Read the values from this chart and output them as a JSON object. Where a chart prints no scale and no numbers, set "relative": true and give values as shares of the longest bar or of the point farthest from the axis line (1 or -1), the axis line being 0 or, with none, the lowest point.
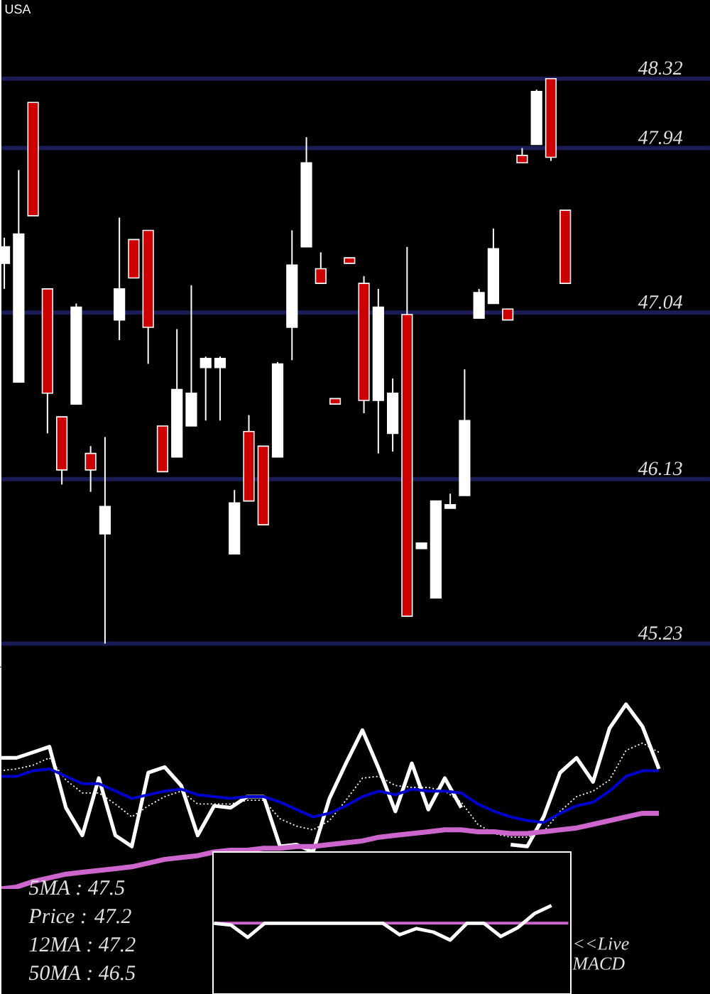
{
  "chart_data": [
    {
      "type": "candlestick",
      "title": "USA",
      "categories": [
        null,
        null,
        null,
        null,
        null,
        null,
        null,
        null,
        null,
        null,
        null,
        null,
        null,
        null,
        null,
        null,
        null,
        null,
        null,
        null,
        null,
        null,
        null,
        null,
        null,
        null,
        null,
        null,
        null,
        null,
        null,
        null,
        null,
        null,
        null,
        null,
        null,
        null,
        null,
        null
      ],
      "ohlc": [
        [
          47.31,
          47.45,
          47.17,
          47.4
        ],
        [
          46.66,
          47.82,
          46.66,
          47.47
        ],
        [
          48.19,
          48.19,
          47.57,
          47.57
        ],
        [
          47.17,
          47.17,
          46.38,
          46.6
        ],
        [
          46.47,
          46.47,
          46.1,
          46.18
        ],
        [
          46.54,
          47.09,
          46.54,
          47.07
        ],
        [
          46.27,
          46.31,
          46.06,
          46.18
        ],
        [
          45.83,
          46.36,
          45.23,
          45.98
        ],
        [
          47.0,
          47.56,
          46.89,
          47.17
        ],
        [
          47.44,
          47.44,
          47.23,
          47.23
        ],
        [
          47.49,
          47.49,
          46.76,
          46.96
        ],
        [
          46.42,
          46.42,
          46.17,
          46.17
        ],
        [
          46.25,
          46.95,
          46.25,
          46.62
        ],
        [
          46.42,
          47.19,
          46.42,
          46.6
        ],
        [
          46.74,
          46.8,
          46.45,
          46.79
        ],
        [
          46.74,
          46.8,
          46.45,
          46.79
        ],
        [
          45.72,
          46.07,
          45.72,
          46.0
        ],
        [
          46.39,
          46.48,
          46.01,
          46.01
        ],
        [
          46.31,
          46.31,
          45.88,
          45.88
        ],
        [
          46.25,
          46.77,
          46.25,
          46.76
        ],
        [
          46.96,
          47.49,
          46.78,
          47.3
        ],
        [
          47.4,
          48.0,
          47.4,
          47.86
        ],
        [
          47.28,
          47.37,
          47.2,
          47.2
        ],
        [
          46.57,
          46.57,
          46.54,
          46.54
        ],
        [
          47.34,
          47.34,
          47.31,
          47.31
        ],
        [
          47.2,
          47.24,
          46.49,
          46.56
        ],
        [
          46.56,
          47.17,
          46.27,
          47.07
        ],
        [
          46.38,
          46.68,
          46.28,
          46.6
        ],
        [
          47.03,
          47.4,
          45.38,
          45.38
        ],
        [
          45.75,
          45.78,
          45.75,
          45.78
        ],
        [
          45.48,
          46.01,
          45.48,
          46.01
        ],
        [
          45.97,
          46.05,
          45.97,
          45.99
        ],
        [
          46.04,
          46.73,
          46.04,
          46.45
        ],
        [
          47.01,
          47.17,
          47.01,
          47.15
        ],
        [
          47.09,
          47.5,
          47.09,
          47.39
        ],
        [
          47.06,
          47.06,
          47.0,
          47.0
        ],
        [
          47.9,
          47.94,
          47.86,
          47.86
        ],
        [
          47.96,
          48.26,
          47.96,
          48.25
        ],
        [
          48.32,
          48.32,
          47.87,
          47.89
        ],
        [
          47.6,
          47.6,
          47.2,
          47.2
        ]
      ],
      "colors": [
        "#ffffff",
        "#ffffff",
        "#cc0000",
        "#cc0000",
        "#cc0000",
        "#ffffff",
        "#cc0000",
        "#ffffff",
        "#ffffff",
        "#cc0000",
        "#cc0000",
        "#cc0000",
        "#ffffff",
        "#ffffff",
        "#ffffff",
        "#ffffff",
        "#ffffff",
        "#cc0000",
        "#cc0000",
        "#ffffff",
        "#ffffff",
        "#ffffff",
        "#cc0000",
        "#cc0000",
        "#cc0000",
        "#cc0000",
        "#ffffff",
        "#ffffff",
        "#cc0000",
        "#ffffff",
        "#ffffff",
        "#ffffff",
        "#ffffff",
        "#ffffff",
        "#ffffff",
        "#cc0000",
        "#cc0000",
        "#ffffff",
        "#cc0000",
        "#cc0000"
      ],
      "ylim": [
        45.1,
        48.75
      ],
      "yticks": [
        45.23,
        46.13,
        47.04,
        47.94,
        48.32
      ],
      "grid": "y",
      "tick_labels": "y"
    },
    {
      "type": "line",
      "relative": true,
      "tick_labels": false,
      "categories": [
        null,
        null,
        null,
        null,
        null,
        null,
        null,
        null,
        null,
        null,
        null,
        null,
        null,
        null,
        null,
        null,
        null,
        null,
        null,
        null,
        null,
        null,
        null,
        null,
        null,
        null,
        null,
        null,
        null,
        null,
        null,
        null,
        null,
        null,
        null,
        null,
        null,
        null,
        null,
        null,
        null
      ],
      "series": [
        {
          "color": "#ffffff",
          "values": [
            0.71,
            0.71,
            0.74,
            0.77,
            0.44,
            0.29,
            0.6,
            0.29,
            0.23,
            0.63,
            0.66,
            0.56,
            0.29,
            0.45,
            0.44,
            0.5,
            0.5,
            0.23,
            0.24,
            0.2,
            0.49,
            0.68,
            0.86,
            0.65,
            0.42,
            0.68,
            0.43,
            0.6,
            0.44,
            null,
            null,
            0.24,
            0.23,
            0.39,
            0.63,
            0.71,
            0.58,
            0.87,
            1.0,
            0.88,
            0.65
          ]
        },
        {
          "color": "#ffffff",
          "line_style": "dotted",
          "values": [
            0.64,
            0.65,
            0.67,
            0.71,
            0.59,
            0.52,
            0.52,
            0.46,
            0.39,
            0.45,
            0.5,
            0.53,
            0.46,
            0.46,
            0.46,
            0.48,
            0.48,
            0.38,
            0.34,
            0.32,
            0.37,
            0.48,
            0.6,
            0.61,
            0.56,
            0.55,
            0.55,
            0.53,
            0.47,
            0.35,
            0.3,
            0.28,
            0.28,
            0.31,
            0.42,
            0.5,
            0.53,
            0.59,
            0.75,
            0.79,
            0.74
          ]
        },
        {
          "color": "#0000cc",
          "values": [
            0.61,
            0.61,
            0.64,
            0.65,
            0.61,
            0.57,
            0.57,
            0.53,
            0.49,
            0.51,
            0.53,
            0.54,
            0.51,
            0.5,
            0.49,
            0.5,
            0.5,
            0.47,
            0.43,
            0.39,
            0.41,
            0.45,
            0.5,
            0.53,
            0.51,
            0.54,
            0.53,
            0.53,
            0.52,
            0.46,
            0.42,
            0.39,
            0.37,
            0.36,
            0.41,
            0.45,
            0.47,
            0.53,
            0.61,
            0.64,
            0.64
          ]
        },
        {
          "color": "#cc66cc",
          "values": [
            0.0,
            0.01,
            0.04,
            0.06,
            0.08,
            0.09,
            0.1,
            0.11,
            0.12,
            0.14,
            0.16,
            0.17,
            0.18,
            0.2,
            0.21,
            0.21,
            0.22,
            0.22,
            0.23,
            0.23,
            0.24,
            0.25,
            0.26,
            0.28,
            0.29,
            0.3,
            0.31,
            0.32,
            0.32,
            0.31,
            0.31,
            0.3,
            0.3,
            0.31,
            0.32,
            0.33,
            0.35,
            0.37,
            0.39,
            0.41,
            0.41
          ]
        }
      ],
      "annotations": [
        "5MA : 47.5",
        "Price : 47.2",
        "12MA : 47.2",
        "50MA : 46.5"
      ]
    },
    {
      "type": "line",
      "relative": true,
      "tick_labels": false,
      "categories": [
        null,
        null,
        null,
        null,
        null,
        null,
        null,
        null,
        null,
        null,
        null,
        null,
        null,
        null,
        null,
        null,
        null,
        null,
        null,
        null,
        null,
        null
      ],
      "series": [
        {
          "color": "#cc66cc",
          "values": [
            0.8,
            0.8,
            0.8,
            0.8,
            0.8,
            0.8,
            0.8,
            0.8,
            0.8,
            0.8,
            0.8,
            0.8,
            0.8,
            0.8,
            0.8,
            0.8,
            0.8,
            0.8,
            0.8,
            0.8,
            0.8,
            0.8
          ]
        },
        {
          "color": "#ffffff",
          "values": [
            0.8,
            0.78,
            0.64,
            0.8,
            0.8,
            0.8,
            0.8,
            0.8,
            0.8,
            0.8,
            0.8,
            0.67,
            0.74,
            0.7,
            0.61,
            0.8,
            0.8,
            0.65,
            0.75,
            0.91,
            1.0,
            null
          ]
        }
      ],
      "annotations": [
        "<<Live MACD"
      ]
    }
  ]
}
